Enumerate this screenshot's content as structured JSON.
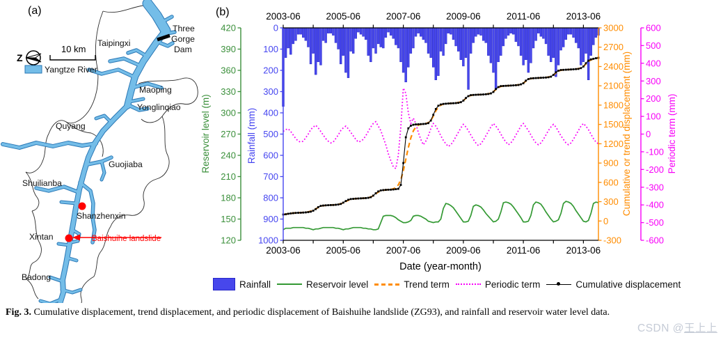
{
  "figure": {
    "panel_a_label": "(a)",
    "panel_b_label": "(b)",
    "caption_label": "Fig. 3.",
    "caption_text": " Cumulative displacement, trend displacement, and periodic displacement of Baishuihe landslide (ZG93), and rainfall and reservoir water level data.",
    "watermark_prefix": "CSDN @",
    "watermark_name": "王上上"
  },
  "map": {
    "north_label": "Z",
    "scale_label": "10 km",
    "legend_label": "Yangtze River",
    "river_color": "#74bde8",
    "landslide_label": "Baishuihe landslide",
    "landslide_color": "#ff0000",
    "places": {
      "taipingxi": "Taipingxi",
      "three_gorge_dam_line1": "Three",
      "three_gorge_dam_line2": "Gorge",
      "three_gorge_dam_line3": "Dam",
      "maoping": "Maoping",
      "yonglinqiao": "Yonglinqiao",
      "quyang": "Quyang",
      "guojiaba": "Guojiaba",
      "shuilianba": "Shuilianba",
      "shanzhenxin": "Shanzhenxin",
      "xintan": "Xintan",
      "badong": "Badong"
    }
  },
  "legend": {
    "items": [
      {
        "label": "Rainfall",
        "type": "bar-swatch",
        "color": "#4747ec"
      },
      {
        "label": "Reservoir level",
        "type": "solid-line",
        "color": "#339933"
      },
      {
        "label": "Trend term",
        "type": "dashed-line",
        "color": "#ff8c00"
      },
      {
        "label": "Periodic term",
        "type": "dotted-line",
        "color": "#f800f8"
      },
      {
        "label": "Cumulative displacement",
        "type": "marker-line",
        "color": "#000000"
      }
    ]
  },
  "chart_data": {
    "type": "composite",
    "title": "",
    "x": {
      "start": "2003-06",
      "months": 127,
      "tick_labels": [
        "2003-06",
        "2005-06",
        "2007-06",
        "2009-06",
        "2011-06",
        "2013-06"
      ],
      "tick_month_index": [
        0,
        24,
        48,
        72,
        96,
        120
      ],
      "minor_tick_month_index": [
        12,
        36,
        60,
        84,
        108
      ],
      "xlabel": "Date (year-month)"
    },
    "axes": {
      "rainfall": {
        "label": "Rainfall (mm)",
        "min": 0,
        "max": 1000,
        "step": 100,
        "inverted": true,
        "color": "#4545f0"
      },
      "reservoir": {
        "label": "Reservoir level (m)",
        "min": 120,
        "max": 420,
        "step": 30,
        "color": "#3a8f3a"
      },
      "displacement": {
        "label": "Cumulative or trend displacement (mm)",
        "min": -300,
        "max": 3000,
        "step": 300,
        "color": "#ff8c00"
      },
      "periodic": {
        "label": "Periodic term (mm)",
        "min": -600,
        "max": 600,
        "step": 100,
        "color": "#f800f8"
      }
    },
    "series": {
      "rainfall_mm": [
        370,
        140,
        95,
        125,
        75,
        60,
        30,
        30,
        45,
        60,
        90,
        170,
        120,
        220,
        160,
        175,
        60,
        70,
        25,
        25,
        35,
        70,
        100,
        170,
        130,
        210,
        235,
        110,
        120,
        50,
        20,
        30,
        40,
        55,
        130,
        160,
        95,
        120,
        75,
        90,
        95,
        45,
        20,
        35,
        50,
        80,
        95,
        160,
        210,
        255,
        185,
        120,
        95,
        40,
        25,
        40,
        55,
        70,
        120,
        140,
        185,
        245,
        225,
        110,
        130,
        75,
        25,
        30,
        55,
        85,
        110,
        150,
        180,
        140,
        290,
        120,
        70,
        40,
        30,
        35,
        60,
        70,
        130,
        165,
        210,
        290,
        160,
        130,
        85,
        50,
        35,
        25,
        30,
        65,
        85,
        130,
        175,
        150,
        210,
        165,
        95,
        60,
        25,
        40,
        50,
        75,
        130,
        160,
        140,
        230,
        175,
        105,
        90,
        55,
        30,
        30,
        45,
        70,
        95,
        175,
        160,
        120,
        245,
        130,
        80,
        45,
        35
      ],
      "reservoir_level_m": [
        135,
        137,
        137,
        137,
        138,
        138,
        138,
        138,
        138,
        137,
        137,
        136,
        135,
        136,
        136,
        137,
        138,
        138,
        138,
        138,
        138,
        137,
        137,
        136,
        135,
        136,
        136,
        137,
        138,
        138,
        138,
        138,
        137,
        137,
        136,
        136,
        135,
        135,
        136,
        145,
        154,
        155,
        155,
        155,
        154,
        152,
        149,
        147,
        145,
        145,
        146,
        148,
        154,
        155,
        155,
        154,
        152,
        150,
        147,
        146,
        145,
        146,
        146,
        150,
        165,
        172,
        171,
        169,
        166,
        161,
        156,
        151,
        146,
        146,
        147,
        155,
        168,
        170,
        169,
        167,
        163,
        158,
        154,
        150,
        146,
        147,
        150,
        160,
        173,
        174,
        173,
        171,
        167,
        162,
        157,
        152,
        146,
        146,
        147,
        155,
        170,
        174,
        173,
        171,
        166,
        160,
        155,
        150,
        146,
        147,
        149,
        158,
        172,
        175,
        174,
        172,
        168,
        162,
        157,
        152,
        147,
        146,
        148,
        158,
        172,
        174,
        173
      ],
      "cumulative_displacement_mm": [
        100,
        105,
        112,
        118,
        122,
        125,
        127,
        129,
        131,
        134,
        138,
        145,
        160,
        185,
        215,
        235,
        240,
        243,
        245,
        247,
        249,
        252,
        256,
        265,
        285,
        310,
        330,
        340,
        344,
        347,
        349,
        351,
        353,
        356,
        360,
        370,
        395,
        430,
        460,
        475,
        480,
        483,
        485,
        487,
        490,
        494,
        500,
        560,
        900,
        1300,
        1440,
        1480,
        1495,
        1500,
        1503,
        1505,
        1507,
        1510,
        1520,
        1560,
        1650,
        1740,
        1790,
        1810,
        1818,
        1822,
        1825,
        1827,
        1829,
        1832,
        1836,
        1845,
        1870,
        1910,
        1940,
        1955,
        1958,
        1960,
        1962,
        1964,
        1966,
        1969,
        1973,
        1982,
        2005,
        2050,
        2080,
        2095,
        2098,
        2100,
        2102,
        2104,
        2106,
        2109,
        2113,
        2122,
        2140,
        2180,
        2205,
        2215,
        2218,
        2220,
        2222,
        2224,
        2226,
        2229,
        2233,
        2242,
        2270,
        2310,
        2335,
        2345,
        2348,
        2350,
        2352,
        2354,
        2356,
        2359,
        2363,
        2375,
        2400,
        2450,
        2490,
        2510,
        2520,
        2528,
        2535
      ],
      "trend_term_mm": [
        100,
        106,
        112,
        118,
        123,
        126,
        128,
        130,
        133,
        137,
        143,
        152,
        168,
        188,
        210,
        228,
        238,
        242,
        245,
        247,
        250,
        253,
        258,
        267,
        283,
        303,
        322,
        336,
        343,
        347,
        349,
        351,
        354,
        357,
        362,
        372,
        393,
        423,
        450,
        468,
        478,
        483,
        486,
        490,
        500,
        520,
        560,
        640,
        780,
        960,
        1140,
        1290,
        1400,
        1460,
        1490,
        1500,
        1507,
        1514,
        1526,
        1560,
        1630,
        1710,
        1770,
        1800,
        1814,
        1820,
        1824,
        1827,
        1830,
        1834,
        1840,
        1850,
        1872,
        1905,
        1933,
        1950,
        1957,
        1960,
        1962,
        1964,
        1967,
        1970,
        1976,
        1986,
        2008,
        2042,
        2072,
        2090,
        2097,
        2100,
        2102,
        2104,
        2107,
        2110,
        2116,
        2124,
        2142,
        2172,
        2198,
        2212,
        2217,
        2220,
        2222,
        2224,
        2227,
        2230,
        2236,
        2245,
        2268,
        2300,
        2328,
        2342,
        2347,
        2350,
        2352,
        2354,
        2357,
        2360,
        2366,
        2378,
        2400,
        2440,
        2478,
        2502,
        2516,
        2526,
        2534
      ],
      "periodic_term_mm": [
        15,
        25,
        30,
        15,
        -5,
        -25,
        -40,
        -45,
        -40,
        -20,
        0,
        25,
        40,
        50,
        35,
        15,
        -5,
        -25,
        -40,
        -50,
        -45,
        -25,
        -5,
        20,
        35,
        45,
        30,
        10,
        -10,
        -30,
        -45,
        -40,
        -30,
        -10,
        15,
        40,
        60,
        70,
        45,
        20,
        -20,
        -60,
        -110,
        -150,
        -185,
        -195,
        -120,
        40,
        260,
        230,
        120,
        60,
        90,
        60,
        10,
        -30,
        -60,
        -40,
        -10,
        30,
        60,
        45,
        20,
        -10,
        -35,
        -55,
        -70,
        -60,
        -40,
        -15,
        10,
        35,
        55,
        40,
        20,
        -5,
        -30,
        -50,
        -65,
        -55,
        -35,
        -10,
        15,
        40,
        60,
        45,
        25,
        0,
        -25,
        -45,
        -60,
        -50,
        -30,
        -5,
        20,
        45,
        60,
        40,
        20,
        -5,
        -30,
        -50,
        -60,
        -50,
        -30,
        -5,
        20,
        40,
        55,
        40,
        15,
        -10,
        -30,
        -50,
        -60,
        -50,
        -30,
        -5,
        20,
        45,
        60,
        45,
        25,
        0,
        -25,
        -45,
        -55
      ]
    }
  }
}
